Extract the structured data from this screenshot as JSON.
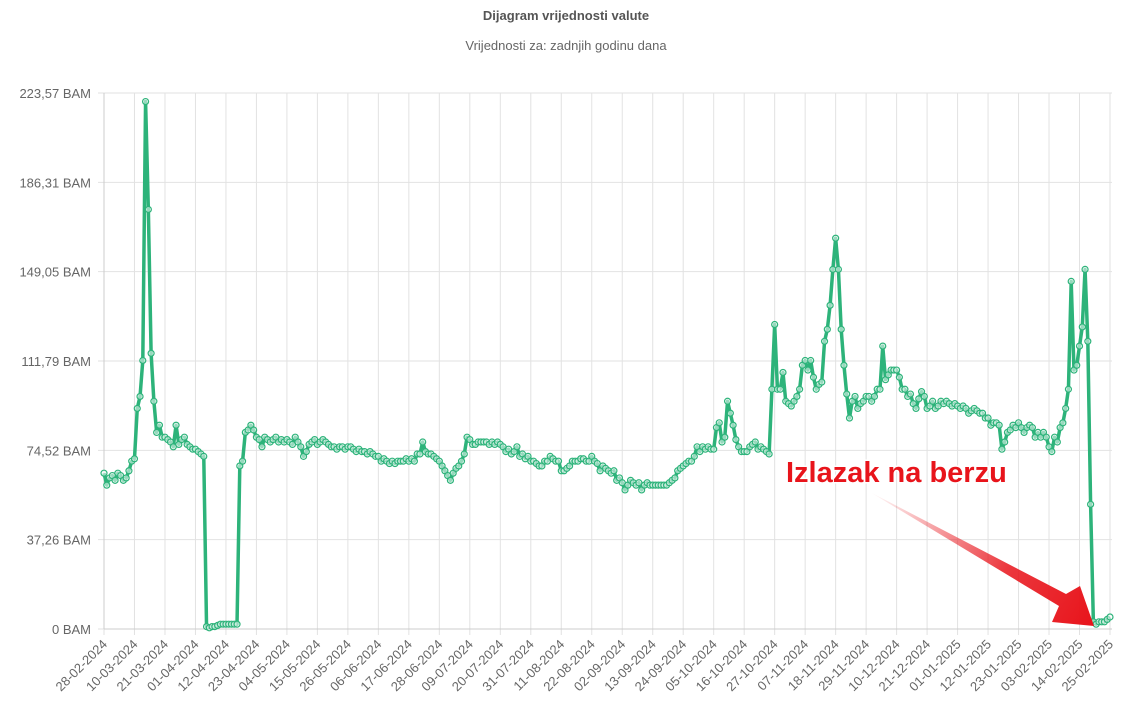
{
  "chart_data": {
    "type": "line",
    "title": "Dijagram vrijednosti valute",
    "subtitle": "Vrijednosti za: zadnjih godinu dana",
    "annotation": "Izlazak na berzu",
    "color": "#2db37a",
    "ylim": [
      0,
      223.57
    ],
    "yticks": [
      {
        "value": 0,
        "label": "0 BAM"
      },
      {
        "value": 37.26,
        "label": "37,26 BAM"
      },
      {
        "value": 74.52,
        "label": "74,52 BAM"
      },
      {
        "value": 111.79,
        "label": "111,79 BAM"
      },
      {
        "value": 149.05,
        "label": "149,05 BAM"
      },
      {
        "value": 186.31,
        "label": "186,31 BAM"
      },
      {
        "value": 223.57,
        "label": "223,57 BAM"
      }
    ],
    "grid": true,
    "categories": [
      "28-02-2024",
      null,
      null,
      null,
      null,
      null,
      null,
      null,
      null,
      null,
      null,
      "10-03-2024",
      null,
      null,
      null,
      null,
      null,
      null,
      null,
      null,
      null,
      null,
      "21-03-2024",
      null,
      null,
      null,
      null,
      null,
      null,
      null,
      null,
      null,
      null,
      "01-04-2024",
      null,
      null,
      null,
      null,
      null,
      null,
      null,
      null,
      null,
      null,
      "12-04-2024",
      null,
      null,
      null,
      null,
      null,
      null,
      null,
      null,
      null,
      null,
      "23-04-2024",
      null,
      null,
      null,
      null,
      null,
      null,
      null,
      null,
      null,
      null,
      "04-05-2024",
      null,
      null,
      null,
      null,
      null,
      null,
      null,
      null,
      null,
      null,
      "15-05-2024",
      null,
      null,
      null,
      null,
      null,
      null,
      null,
      null,
      null,
      null,
      "26-05-2024",
      null,
      null,
      null,
      null,
      null,
      null,
      null,
      null,
      null,
      null,
      "06-06-2024",
      null,
      null,
      null,
      null,
      null,
      null,
      null,
      null,
      null,
      null,
      "17-06-2024",
      null,
      null,
      null,
      null,
      null,
      null,
      null,
      null,
      null,
      null,
      "28-06-2024",
      null,
      null,
      null,
      null,
      null,
      null,
      null,
      null,
      null,
      null,
      "09-07-2024",
      null,
      null,
      null,
      null,
      null,
      null,
      null,
      null,
      null,
      null,
      "20-07-2024",
      null,
      null,
      null,
      null,
      null,
      null,
      null,
      null,
      null,
      null,
      "31-07-2024",
      null,
      null,
      null,
      null,
      null,
      null,
      null,
      null,
      null,
      null,
      "11-08-2024",
      null,
      null,
      null,
      null,
      null,
      null,
      null,
      null,
      null,
      null,
      "22-08-2024",
      null,
      null,
      null,
      null,
      null,
      null,
      null,
      null,
      null,
      null,
      "02-09-2024",
      null,
      null,
      null,
      null,
      null,
      null,
      null,
      null,
      null,
      null,
      "13-09-2024",
      null,
      null,
      null,
      null,
      null,
      null,
      null,
      null,
      null,
      null,
      "24-09-2024",
      null,
      null,
      null,
      null,
      null,
      null,
      null,
      null,
      null,
      null,
      "05-10-2024",
      null,
      null,
      null,
      null,
      null,
      null,
      null,
      null,
      null,
      null,
      "16-10-2024",
      null,
      null,
      null,
      null,
      null,
      null,
      null,
      null,
      null,
      null,
      "27-10-2024",
      null,
      null,
      null,
      null,
      null,
      null,
      null,
      null,
      null,
      null,
      "07-11-2024",
      null,
      null,
      null,
      null,
      null,
      null,
      null,
      null,
      null,
      null,
      "18-11-2024",
      null,
      null,
      null,
      null,
      null,
      null,
      null,
      null,
      null,
      null,
      "29-11-2024",
      null,
      null,
      null,
      null,
      null,
      null,
      null,
      null,
      null,
      null,
      "10-12-2024",
      null,
      null,
      null,
      null,
      null,
      null,
      null,
      null,
      null,
      null,
      "21-12-2024",
      null,
      null,
      null,
      null,
      null,
      null,
      null,
      null,
      null,
      null,
      "01-01-2025",
      null,
      null,
      null,
      null,
      null,
      null,
      null,
      null,
      null,
      null,
      "12-01-2025",
      null,
      null,
      null,
      null,
      null,
      null,
      null,
      null,
      null,
      null,
      "23-01-2025",
      null,
      null,
      null,
      null,
      null,
      null,
      null,
      null,
      null,
      null,
      "03-02-2025",
      null,
      null,
      null,
      null,
      null,
      null,
      null,
      null,
      null,
      null,
      "14-02-2025",
      null,
      null,
      null,
      null,
      null,
      null,
      null,
      null,
      null,
      null,
      "25-02-2025"
    ],
    "values": [
      65,
      60,
      63,
      64,
      62,
      65,
      64,
      62,
      63,
      66,
      70,
      71,
      92,
      97,
      112,
      220,
      175,
      115,
      95,
      82,
      85,
      80,
      80,
      79,
      78,
      76,
      85,
      77,
      79,
      80,
      77,
      76,
      75,
      75,
      74,
      73,
      72,
      1,
      0.5,
      1,
      1,
      1.5,
      2,
      2,
      2,
      2,
      2,
      2,
      2,
      68,
      70,
      82,
      83,
      85,
      83,
      80,
      79,
      76,
      80,
      79,
      78,
      79,
      80,
      78,
      79,
      78,
      79,
      78,
      77,
      80,
      78,
      76,
      72,
      74,
      77,
      78,
      79,
      77,
      78,
      79,
      78,
      77,
      76,
      76,
      75,
      76,
      76,
      75,
      76,
      76,
      75,
      74,
      75,
      74,
      74,
      73,
      74,
      73,
      72,
      72,
      70,
      71,
      70,
      69,
      70,
      69,
      70,
      70,
      70,
      71,
      70,
      71,
      70,
      73,
      73,
      78,
      74,
      73,
      73,
      72,
      71,
      70,
      68,
      66,
      64,
      62,
      65,
      67,
      68,
      70,
      73,
      80,
      79,
      77,
      77,
      78,
      78,
      78,
      78,
      77,
      78,
      77,
      78,
      77,
      76,
      74,
      75,
      73,
      74,
      76,
      72,
      73,
      71,
      72,
      70,
      70,
      69,
      68,
      68,
      70,
      70,
      72,
      71,
      70,
      70,
      66,
      66,
      67,
      68,
      70,
      70,
      70,
      71,
      71,
      70,
      70,
      72,
      70,
      69,
      66,
      68,
      67,
      66,
      65,
      66,
      62,
      63,
      61,
      58,
      60,
      62,
      61,
      60,
      61,
      58,
      60,
      61,
      60,
      60,
      60,
      60,
      60,
      60,
      60,
      61,
      62,
      63,
      66,
      67,
      68,
      69,
      70,
      70,
      72,
      76,
      74,
      76,
      75,
      76,
      75,
      75,
      84,
      86,
      78,
      80,
      95,
      90,
      85,
      79,
      76,
      74,
      74,
      74,
      76,
      77,
      78,
      75,
      76,
      75,
      74,
      73,
      100,
      127,
      100,
      100,
      107,
      95,
      94,
      93,
      95,
      97,
      100,
      110,
      112,
      108,
      112,
      105,
      100,
      102,
      103,
      120,
      125,
      135,
      150,
      163,
      150,
      125,
      110,
      98,
      88,
      95,
      97,
      92,
      94,
      95,
      97,
      97,
      95,
      97,
      100,
      100,
      118,
      104,
      106,
      108,
      108,
      108,
      105,
      100,
      100,
      97,
      98,
      94,
      92,
      96,
      99,
      97,
      92,
      93,
      95,
      92,
      93,
      95,
      94,
      95,
      94,
      93,
      94,
      93,
      92,
      93,
      92,
      90,
      91,
      92,
      91,
      90,
      90,
      88,
      88,
      85,
      86,
      86,
      85,
      75,
      78,
      82,
      83,
      85,
      84,
      86,
      84,
      82,
      84,
      85,
      84,
      80,
      82,
      80,
      82,
      80,
      76,
      74,
      80,
      78,
      84,
      86,
      92,
      100,
      145,
      108,
      110,
      118,
      126,
      150,
      120,
      52,
      3,
      2,
      3,
      3,
      3,
      4,
      5
    ]
  }
}
